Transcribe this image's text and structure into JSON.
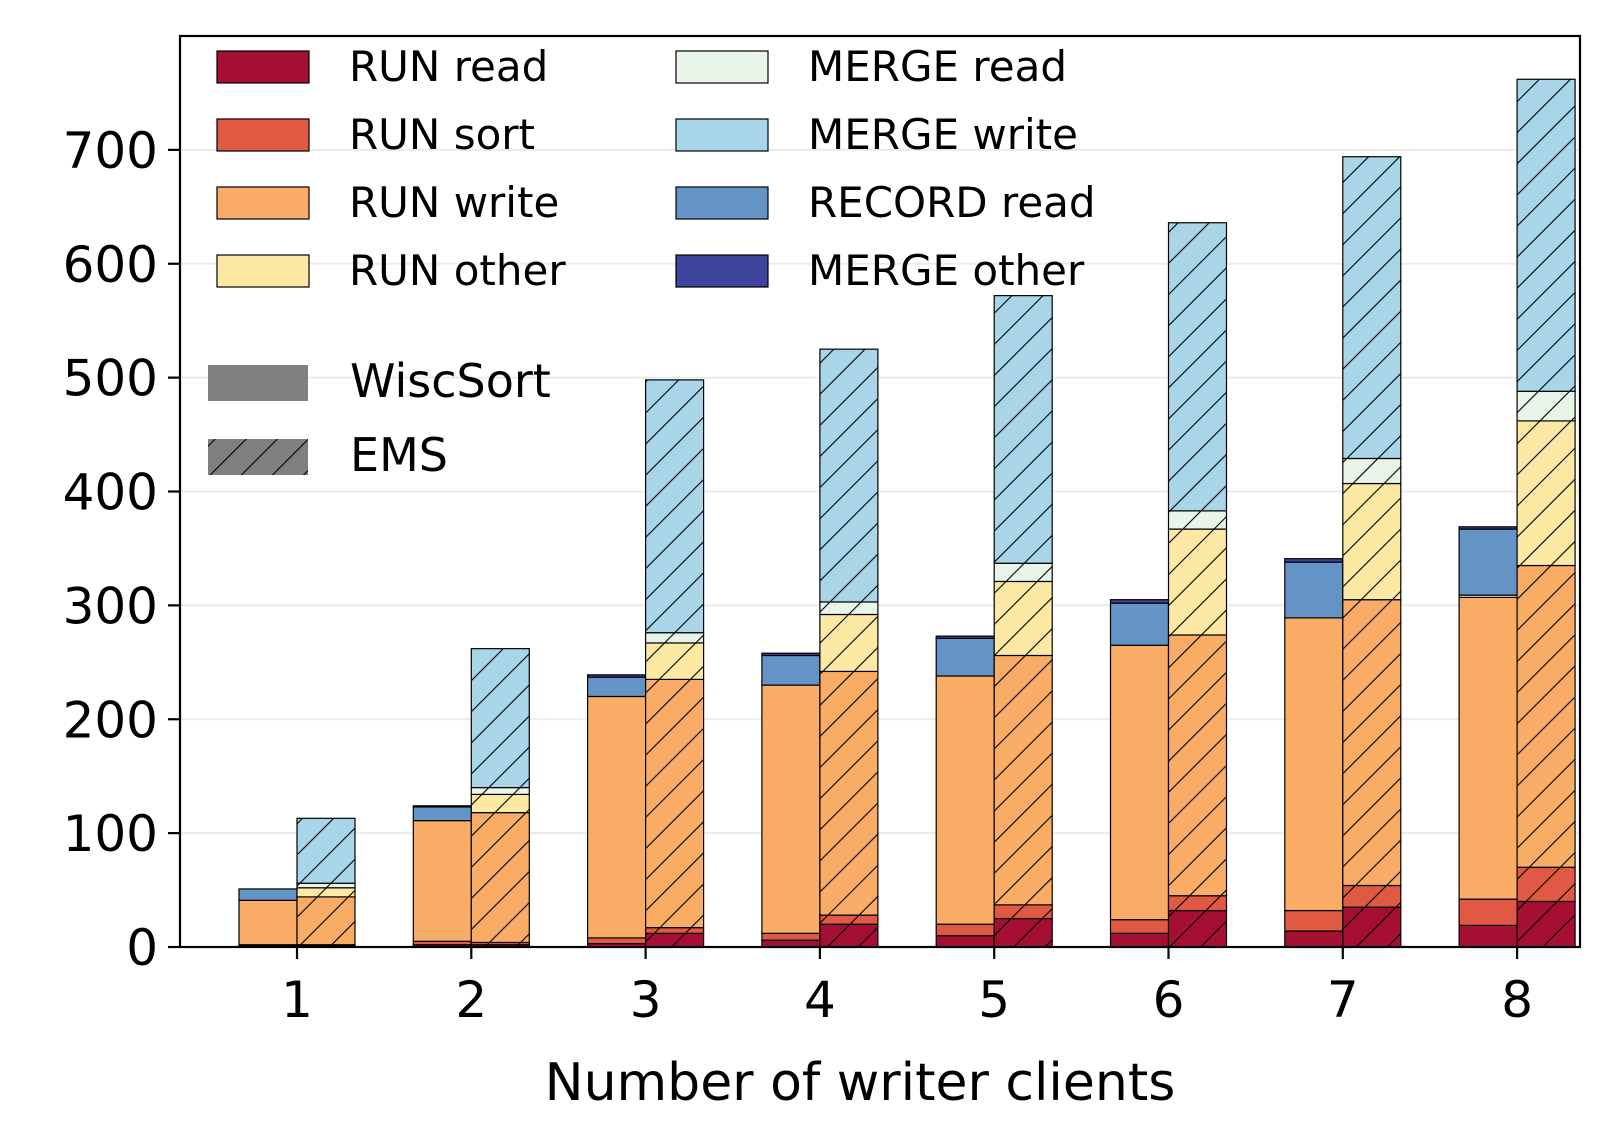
{
  "chart_data": {
    "type": "bar",
    "stacked": true,
    "grouped_by": "system",
    "x": [
      1,
      2,
      3,
      4,
      5,
      6,
      7,
      8
    ],
    "xlabel": "Number of writer clients",
    "ylabel": "",
    "ylim": [
      0,
      800
    ],
    "yticks": [
      0,
      100,
      200,
      300,
      400,
      500,
      600,
      700
    ],
    "grid": "horizontal",
    "legend_placement": "top-left",
    "components": [
      {
        "name": "RUN read",
        "color": "#a50f32"
      },
      {
        "name": "RUN sort",
        "color": "#e05a43"
      },
      {
        "name": "RUN write",
        "color": "#f9ac66"
      },
      {
        "name": "RUN other",
        "color": "#fde9a3"
      },
      {
        "name": "MERGE read",
        "color": "#e9f5e9"
      },
      {
        "name": "MERGE write",
        "color": "#a8d5e8"
      },
      {
        "name": "RECORD read",
        "color": "#6494c6"
      },
      {
        "name": "MERGE other",
        "color": "#3f449d"
      }
    ],
    "systems": [
      {
        "name": "WiscSort",
        "pattern": "solid"
      },
      {
        "name": "EMS",
        "pattern": "hatched"
      }
    ],
    "series": [
      {
        "name": "WiscSort",
        "stack": "WiscSort",
        "values": {
          "RUN read": [
            1,
            2,
            3,
            6,
            10,
            12,
            14,
            19
          ],
          "RUN sort": [
            1,
            3,
            5,
            6,
            10,
            12,
            18,
            23
          ],
          "RUN write": [
            39,
            106,
            212,
            218,
            218,
            241,
            257,
            265
          ],
          "RUN other": [
            0,
            0,
            0,
            0,
            0,
            0,
            0,
            2
          ],
          "MERGE read": [
            0,
            0,
            0,
            0,
            0,
            0,
            0,
            0
          ],
          "MERGE write": [
            0,
            0,
            0,
            0,
            0,
            0,
            0,
            0
          ],
          "RECORD read": [
            10,
            12,
            17,
            26,
            33,
            37,
            49,
            58
          ],
          "MERGE other": [
            0,
            1,
            2,
            2,
            2,
            3,
            3,
            2
          ]
        }
      },
      {
        "name": "EMS",
        "stack": "EMS",
        "values": {
          "RUN read": [
            1,
            2,
            12,
            20,
            25,
            32,
            35,
            40
          ],
          "RUN sort": [
            1,
            2,
            5,
            8,
            12,
            13,
            19,
            30
          ],
          "RUN write": [
            42,
            114,
            218,
            214,
            219,
            229,
            251,
            265
          ],
          "RUN other": [
            8,
            16,
            32,
            50,
            65,
            93,
            102,
            127
          ],
          "MERGE read": [
            4,
            6,
            9,
            11,
            16,
            16,
            22,
            26
          ],
          "MERGE write": [
            57,
            122,
            222,
            222,
            235,
            253,
            265,
            274
          ],
          "RECORD read": [
            0,
            0,
            0,
            0,
            0,
            0,
            0,
            0
          ],
          "MERGE other": [
            0,
            0,
            0,
            0,
            0,
            0,
            0,
            0
          ]
        }
      }
    ]
  }
}
